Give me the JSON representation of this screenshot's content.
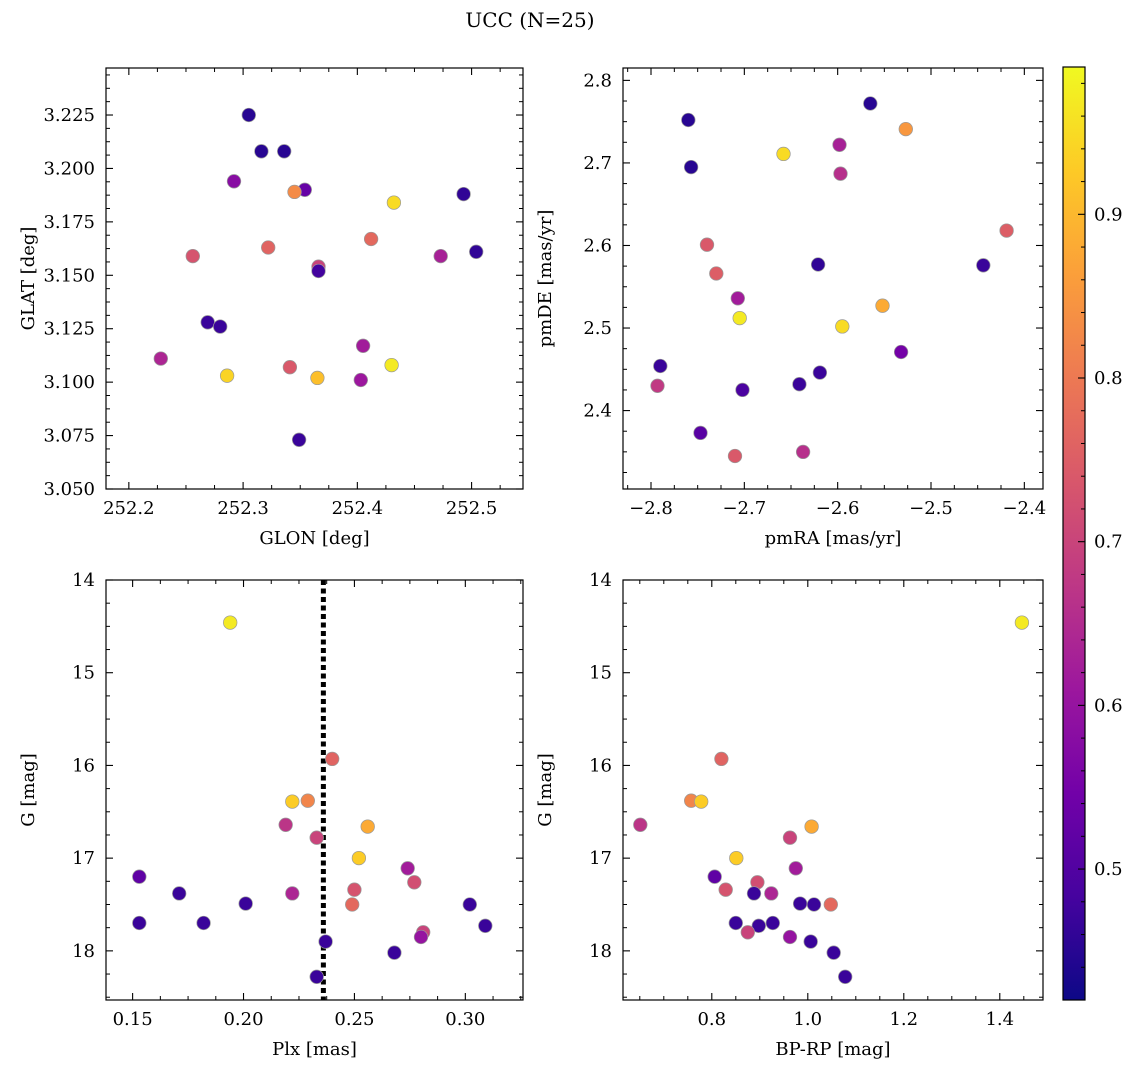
{
  "suptitle": "UCC (N=25)",
  "colorbar": {
    "range": [
      0.42,
      0.99
    ],
    "ticks": [
      0.5,
      0.6,
      0.7,
      0.8,
      0.9
    ],
    "tick_labels": [
      "0.5",
      "0.6",
      "0.7",
      "0.8",
      "0.9"
    ],
    "colormap": "plasma",
    "colormap_stops": [
      "#0d0887",
      "#46039f",
      "#7201a8",
      "#9c179e",
      "#bd3786",
      "#d8576b",
      "#ed7953",
      "#fb9f3a",
      "#fdca26",
      "#f0f921"
    ]
  },
  "chart_data": [
    {
      "type": "scatter",
      "xlabel": "GLON [deg]",
      "ylabel": "GLAT [deg]",
      "xlim": [
        252.18,
        252.545
      ],
      "ylim": [
        3.05,
        3.247
      ],
      "inverted_y": false,
      "xticks": [
        252.2,
        252.3,
        252.4,
        252.5
      ],
      "xtick_labels": [
        "252.2",
        "252.3",
        "252.4",
        "252.5"
      ],
      "yticks": [
        3.05,
        3.075,
        3.1,
        3.125,
        3.15,
        3.175,
        3.2,
        3.225
      ],
      "ytick_labels": [
        "3.050",
        "3.075",
        "3.100",
        "3.125",
        "3.150",
        "3.175",
        "3.200",
        "3.225"
      ],
      "points": [
        {
          "x": 252.305,
          "y": 3.225,
          "c": 0.45
        },
        {
          "x": 252.316,
          "y": 3.208,
          "c": 0.45
        },
        {
          "x": 252.336,
          "y": 3.208,
          "c": 0.45
        },
        {
          "x": 252.292,
          "y": 3.194,
          "c": 0.58
        },
        {
          "x": 252.354,
          "y": 3.19,
          "c": 0.53
        },
        {
          "x": 252.345,
          "y": 3.189,
          "c": 0.83
        },
        {
          "x": 252.432,
          "y": 3.184,
          "c": 0.95
        },
        {
          "x": 252.493,
          "y": 3.188,
          "c": 0.46
        },
        {
          "x": 252.412,
          "y": 3.167,
          "c": 0.77
        },
        {
          "x": 252.322,
          "y": 3.163,
          "c": 0.76
        },
        {
          "x": 252.256,
          "y": 3.159,
          "c": 0.73
        },
        {
          "x": 252.473,
          "y": 3.159,
          "c": 0.63
        },
        {
          "x": 252.504,
          "y": 3.161,
          "c": 0.46
        },
        {
          "x": 252.366,
          "y": 3.154,
          "c": 0.7
        },
        {
          "x": 252.366,
          "y": 3.152,
          "c": 0.48
        },
        {
          "x": 252.269,
          "y": 3.128,
          "c": 0.47
        },
        {
          "x": 252.28,
          "y": 3.126,
          "c": 0.47
        },
        {
          "x": 252.405,
          "y": 3.117,
          "c": 0.62
        },
        {
          "x": 252.228,
          "y": 3.111,
          "c": 0.64
        },
        {
          "x": 252.43,
          "y": 3.108,
          "c": 0.97
        },
        {
          "x": 252.341,
          "y": 3.107,
          "c": 0.74
        },
        {
          "x": 252.286,
          "y": 3.103,
          "c": 0.94
        },
        {
          "x": 252.365,
          "y": 3.102,
          "c": 0.91
        },
        {
          "x": 252.403,
          "y": 3.101,
          "c": 0.61
        },
        {
          "x": 252.349,
          "y": 3.073,
          "c": 0.47
        }
      ]
    },
    {
      "type": "scatter",
      "xlabel": "pmRA [mas/yr]",
      "ylabel": "pmDE [mas/yr]",
      "xlim": [
        -2.83,
        -2.38
      ],
      "ylim": [
        2.305,
        2.815
      ],
      "inverted_y": false,
      "xticks": [
        -2.8,
        -2.7,
        -2.6,
        -2.5,
        -2.4
      ],
      "xtick_labels": [
        "−2.8",
        "−2.7",
        "−2.6",
        "−2.5",
        "−2.4"
      ],
      "yticks": [
        2.4,
        2.5,
        2.6,
        2.7,
        2.8
      ],
      "ytick_labels": [
        "2.4",
        "2.5",
        "2.6",
        "2.7",
        "2.8"
      ],
      "points": [
        {
          "x": -2.565,
          "y": 2.772,
          "c": 0.45
        },
        {
          "x": -2.76,
          "y": 2.752,
          "c": 0.45
        },
        {
          "x": -2.527,
          "y": 2.741,
          "c": 0.85
        },
        {
          "x": -2.598,
          "y": 2.722,
          "c": 0.63
        },
        {
          "x": -2.658,
          "y": 2.711,
          "c": 0.95
        },
        {
          "x": -2.757,
          "y": 2.695,
          "c": 0.45
        },
        {
          "x": -2.597,
          "y": 2.687,
          "c": 0.66
        },
        {
          "x": -2.419,
          "y": 2.618,
          "c": 0.75
        },
        {
          "x": -2.74,
          "y": 2.601,
          "c": 0.74
        },
        {
          "x": -2.621,
          "y": 2.577,
          "c": 0.46
        },
        {
          "x": -2.444,
          "y": 2.576,
          "c": 0.47
        },
        {
          "x": -2.73,
          "y": 2.566,
          "c": 0.75
        },
        {
          "x": -2.707,
          "y": 2.536,
          "c": 0.62
        },
        {
          "x": -2.552,
          "y": 2.527,
          "c": 0.88
        },
        {
          "x": -2.705,
          "y": 2.512,
          "c": 0.97
        },
        {
          "x": -2.595,
          "y": 2.502,
          "c": 0.95
        },
        {
          "x": -2.532,
          "y": 2.471,
          "c": 0.55
        },
        {
          "x": -2.79,
          "y": 2.454,
          "c": 0.47
        },
        {
          "x": -2.619,
          "y": 2.446,
          "c": 0.47
        },
        {
          "x": -2.641,
          "y": 2.432,
          "c": 0.47
        },
        {
          "x": -2.793,
          "y": 2.43,
          "c": 0.68
        },
        {
          "x": -2.702,
          "y": 2.425,
          "c": 0.49
        },
        {
          "x": -2.747,
          "y": 2.373,
          "c": 0.51
        },
        {
          "x": -2.637,
          "y": 2.35,
          "c": 0.66
        },
        {
          "x": -2.71,
          "y": 2.345,
          "c": 0.74
        }
      ]
    },
    {
      "type": "scatter",
      "xlabel": "Plx [mas]",
      "ylabel": "G [mag]",
      "xlim": [
        0.138,
        0.326
      ],
      "ylim": [
        14.0,
        18.53
      ],
      "inverted_y": true,
      "vline": {
        "x": 0.236,
        "style": "dotted"
      },
      "xticks": [
        0.15,
        0.2,
        0.25,
        0.3
      ],
      "xtick_labels": [
        "0.15",
        "0.20",
        "0.25",
        "0.30"
      ],
      "yticks": [
        14,
        15,
        16,
        17,
        18
      ],
      "ytick_labels": [
        "14",
        "15",
        "16",
        "17",
        "18"
      ],
      "points": [
        {
          "x": 0.194,
          "y": 14.46,
          "c": 0.97
        },
        {
          "x": 0.24,
          "y": 15.93,
          "c": 0.76
        },
        {
          "x": 0.222,
          "y": 16.39,
          "c": 0.93
        },
        {
          "x": 0.229,
          "y": 16.38,
          "c": 0.82
        },
        {
          "x": 0.256,
          "y": 16.66,
          "c": 0.88
        },
        {
          "x": 0.219,
          "y": 16.64,
          "c": 0.67
        },
        {
          "x": 0.233,
          "y": 16.78,
          "c": 0.7
        },
        {
          "x": 0.252,
          "y": 17.0,
          "c": 0.93
        },
        {
          "x": 0.274,
          "y": 17.11,
          "c": 0.62
        },
        {
          "x": 0.153,
          "y": 17.2,
          "c": 0.52
        },
        {
          "x": 0.277,
          "y": 17.26,
          "c": 0.72
        },
        {
          "x": 0.25,
          "y": 17.34,
          "c": 0.73
        },
        {
          "x": 0.171,
          "y": 17.38,
          "c": 0.47
        },
        {
          "x": 0.222,
          "y": 17.38,
          "c": 0.64
        },
        {
          "x": 0.201,
          "y": 17.49,
          "c": 0.47
        },
        {
          "x": 0.249,
          "y": 17.5,
          "c": 0.77
        },
        {
          "x": 0.302,
          "y": 17.5,
          "c": 0.47
        },
        {
          "x": 0.153,
          "y": 17.7,
          "c": 0.47
        },
        {
          "x": 0.182,
          "y": 17.7,
          "c": 0.47
        },
        {
          "x": 0.309,
          "y": 17.73,
          "c": 0.47
        },
        {
          "x": 0.281,
          "y": 17.8,
          "c": 0.7
        },
        {
          "x": 0.28,
          "y": 17.85,
          "c": 0.6
        },
        {
          "x": 0.237,
          "y": 17.9,
          "c": 0.47
        },
        {
          "x": 0.268,
          "y": 18.02,
          "c": 0.47
        },
        {
          "x": 0.233,
          "y": 18.28,
          "c": 0.47
        }
      ]
    },
    {
      "type": "scatter",
      "xlabel": "BP-RP [mag]",
      "ylabel": "G [mag]",
      "xlim": [
        0.615,
        1.49
      ],
      "ylim": [
        14.0,
        18.53
      ],
      "inverted_y": true,
      "xticks": [
        0.8,
        1.0,
        1.2,
        1.4
      ],
      "xtick_labels": [
        "0.8",
        "1.0",
        "1.2",
        "1.4"
      ],
      "yticks": [
        14,
        15,
        16,
        17,
        18
      ],
      "ytick_labels": [
        "14",
        "15",
        "16",
        "17",
        "18"
      ],
      "points": [
        {
          "x": 1.446,
          "y": 14.46,
          "c": 0.97
        },
        {
          "x": 0.82,
          "y": 15.93,
          "c": 0.76
        },
        {
          "x": 0.757,
          "y": 16.38,
          "c": 0.82
        },
        {
          "x": 0.778,
          "y": 16.39,
          "c": 0.93
        },
        {
          "x": 0.651,
          "y": 16.64,
          "c": 0.67
        },
        {
          "x": 1.008,
          "y": 16.66,
          "c": 0.88
        },
        {
          "x": 0.963,
          "y": 16.78,
          "c": 0.7
        },
        {
          "x": 0.851,
          "y": 17.0,
          "c": 0.93
        },
        {
          "x": 0.975,
          "y": 17.11,
          "c": 0.62
        },
        {
          "x": 0.806,
          "y": 17.2,
          "c": 0.52
        },
        {
          "x": 0.895,
          "y": 17.26,
          "c": 0.72
        },
        {
          "x": 0.829,
          "y": 17.34,
          "c": 0.73
        },
        {
          "x": 0.888,
          "y": 17.38,
          "c": 0.47
        },
        {
          "x": 0.924,
          "y": 17.38,
          "c": 0.64
        },
        {
          "x": 0.984,
          "y": 17.49,
          "c": 0.47
        },
        {
          "x": 1.013,
          "y": 17.5,
          "c": 0.47
        },
        {
          "x": 1.048,
          "y": 17.5,
          "c": 0.77
        },
        {
          "x": 0.85,
          "y": 17.7,
          "c": 0.47
        },
        {
          "x": 0.927,
          "y": 17.7,
          "c": 0.47
        },
        {
          "x": 0.898,
          "y": 17.73,
          "c": 0.47
        },
        {
          "x": 0.875,
          "y": 17.8,
          "c": 0.7
        },
        {
          "x": 0.963,
          "y": 17.85,
          "c": 0.6
        },
        {
          "x": 1.006,
          "y": 17.9,
          "c": 0.47
        },
        {
          "x": 1.054,
          "y": 18.02,
          "c": 0.47
        },
        {
          "x": 1.078,
          "y": 18.28,
          "c": 0.47
        }
      ]
    }
  ]
}
